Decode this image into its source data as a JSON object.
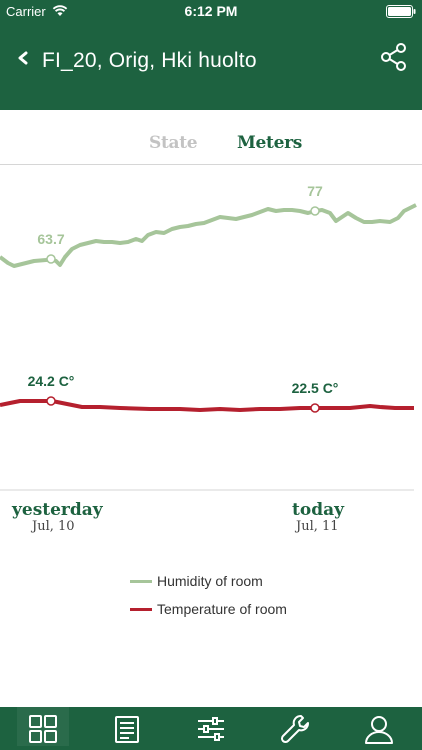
{
  "status_bar": {
    "carrier": "Carrier",
    "time": "6:12 PM"
  },
  "header": {
    "title": "FI_20, Orig, Hki huolto",
    "back_icon": "chevron-left-icon",
    "share_icon": "share-icon"
  },
  "tabs": [
    {
      "label": "State",
      "active": false
    },
    {
      "label": "Meters",
      "active": true
    }
  ],
  "chart_data": {
    "type": "line",
    "x": [
      "yesterday",
      "today"
    ],
    "series": [
      {
        "name": "Humidity of room",
        "color": "#a6c59a",
        "annotations": [
          {
            "label": "63.7",
            "value": 63.7
          },
          {
            "label": "77",
            "value": 77
          }
        ]
      },
      {
        "name": "Temperature of room",
        "color": "#b5202e",
        "annotations": [
          {
            "label": "24.2 C°",
            "value": 24.2
          },
          {
            "label": "22.5 C°",
            "value": 22.5
          }
        ]
      }
    ],
    "x_ticks": [
      {
        "label": "yesterday",
        "date": "Jul, 10"
      },
      {
        "label": "today",
        "date": "Jul, 11"
      }
    ]
  },
  "legend": [
    {
      "label": "Humidity of room",
      "color": "#a6c59a"
    },
    {
      "label": "Temperature of room",
      "color": "#b5202e"
    }
  ],
  "tabbar": [
    {
      "icon": "grid-icon",
      "active": true
    },
    {
      "icon": "document-icon",
      "active": false
    },
    {
      "icon": "sliders-icon",
      "active": false
    },
    {
      "icon": "wrench-icon",
      "active": false
    },
    {
      "icon": "user-icon",
      "active": false
    }
  ]
}
